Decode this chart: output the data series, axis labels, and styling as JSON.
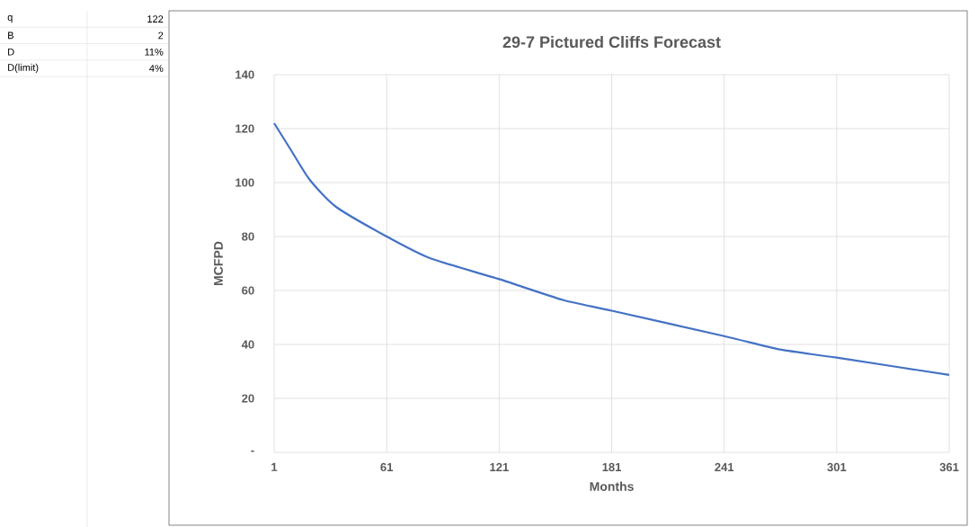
{
  "chart_data": {
    "type": "line",
    "title": "29-7 Pictured Cliffs Forecast",
    "xlabel": "Months",
    "ylabel": "MCFPD",
    "annotations": [
      "q",
      "122",
      "B",
      "2",
      "D",
      "11%",
      "D(limit)",
      "4%"
    ],
    "x": [
      1,
      10,
      20,
      34,
      61,
      84,
      121,
      155,
      181,
      241,
      271,
      301,
      361
    ],
    "series": [
      {
        "color": "#4472c4",
        "values": [
          122,
          112,
          101,
          91,
          80,
          72,
          64.2,
          56.5,
          52.5,
          43.1,
          38.1,
          35.1,
          28.7
        ]
      }
    ],
    "xlim": [
      1,
      361
    ],
    "xticks": [
      1,
      61,
      121,
      181,
      241,
      301,
      361
    ],
    "ylim": [
      0,
      140
    ],
    "yticks": [
      {
        "value": 0,
        "label": "-"
      },
      20,
      40,
      60,
      80,
      100,
      120,
      140
    ],
    "grid": true,
    "marker": "none",
    "line_style": "solid"
  }
}
